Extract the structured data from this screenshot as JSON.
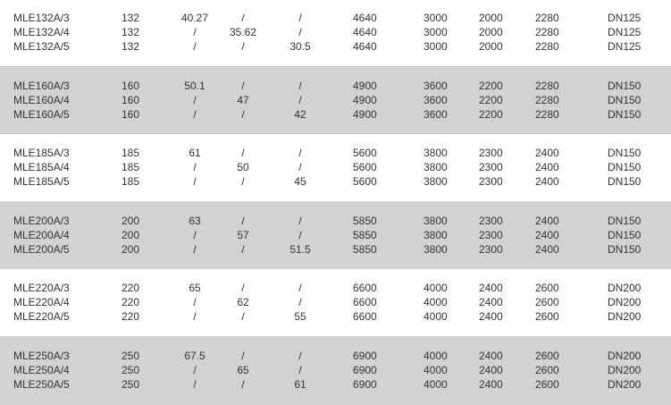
{
  "table": {
    "groups": [
      {
        "shaded": false,
        "rows": [
          [
            "MLE132A/3",
            "132",
            "40.27",
            "/",
            "/",
            "4640",
            "3000",
            "2000",
            "2280",
            "DN125"
          ],
          [
            "MLE132A/4",
            "132",
            "/",
            "35.62",
            "/",
            "4640",
            "3000",
            "2000",
            "2280",
            "DN125"
          ],
          [
            "MLE132A/5",
            "132",
            "/",
            "/",
            "30.5",
            "4640",
            "3000",
            "2000",
            "2280",
            "DN125"
          ]
        ]
      },
      {
        "shaded": true,
        "rows": [
          [
            "MLE160A/3",
            "160",
            "50.1",
            "/",
            "/",
            "4900",
            "3600",
            "2200",
            "2280",
            "DN150"
          ],
          [
            "MLE160A/4",
            "160",
            "/",
            "47",
            "/",
            "4900",
            "3600",
            "2200",
            "2280",
            "DN150"
          ],
          [
            "MLE160A/5",
            "160",
            "/",
            "/",
            "42",
            "4900",
            "3600",
            "2200",
            "2280",
            "DN150"
          ]
        ]
      },
      {
        "shaded": false,
        "rows": [
          [
            "MLE185A/3",
            "185",
            "61",
            "/",
            "/",
            "5600",
            "3800",
            "2300",
            "2400",
            "DN150"
          ],
          [
            "MLE185A/4",
            "185",
            "/",
            "50",
            "/",
            "5600",
            "3800",
            "2300",
            "2400",
            "DN150"
          ],
          [
            "MLE185A/5",
            "185",
            "/",
            "/",
            "45",
            "5600",
            "3800",
            "2300",
            "2400",
            "DN150"
          ]
        ]
      },
      {
        "shaded": true,
        "rows": [
          [
            "MLE200A/3",
            "200",
            "63",
            "/",
            "/",
            "5850",
            "3800",
            "2300",
            "2400",
            "DN150"
          ],
          [
            "MLE200A/4",
            "200",
            "/",
            "57",
            "/",
            "5850",
            "3800",
            "2300",
            "2400",
            "DN150"
          ],
          [
            "MLE200A/5",
            "200",
            "/",
            "/",
            "51.5",
            "5850",
            "3800",
            "2300",
            "2400",
            "DN150"
          ]
        ]
      },
      {
        "shaded": false,
        "rows": [
          [
            "MLE220A/3",
            "220",
            "65",
            "/",
            "/",
            "6600",
            "4000",
            "2400",
            "2600",
            "DN200"
          ],
          [
            "MLE220A/4",
            "220",
            "/",
            "62",
            "/",
            "6600",
            "4000",
            "2400",
            "2600",
            "DN200"
          ],
          [
            "MLE220A/5",
            "220",
            "/",
            "/",
            "55",
            "6600",
            "4000",
            "2400",
            "2600",
            "DN200"
          ]
        ]
      },
      {
        "shaded": true,
        "rows": [
          [
            "MLE250A/3",
            "250",
            "67.5",
            "/",
            "/",
            "6900",
            "4000",
            "2400",
            "2600",
            "DN200"
          ],
          [
            "MLE250A/4",
            "250",
            "/",
            "65",
            "/",
            "6900",
            "4000",
            "2400",
            "2600",
            "DN200"
          ],
          [
            "MLE250A/5",
            "250",
            "/",
            "/",
            "61",
            "6900",
            "4000",
            "2400",
            "2600",
            "DN200"
          ]
        ]
      }
    ]
  }
}
